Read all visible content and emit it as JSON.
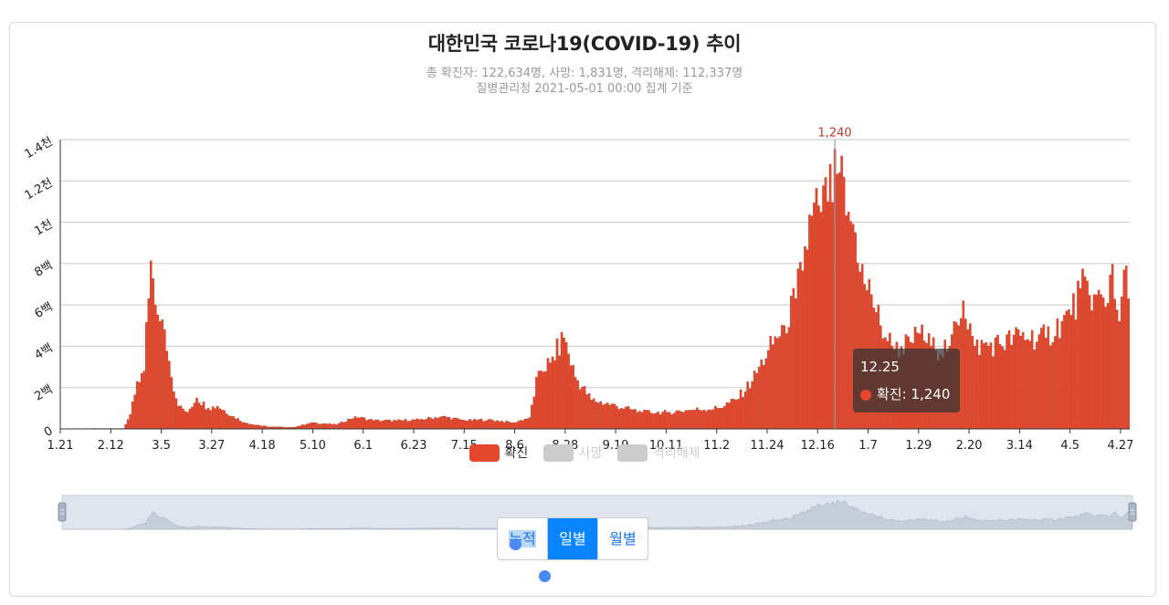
{
  "chart_data": {
    "type": "bar",
    "title": "대한민국 코로나19(COVID-19) 추이",
    "subtitle": "총 확진자: 122,634명, 사망: 1,831명, 격리해제: 112,337명",
    "subtitle2": "질병관리청 2021-05-01 00:00 집계 기준",
    "x_range": [
      "2020-01-21",
      "2021-04-30"
    ],
    "ylim": [
      0,
      1400
    ],
    "y_ticks": [
      "0",
      "2백",
      "4백",
      "6백",
      "8백",
      "1천",
      "1.2천",
      "1.4천"
    ],
    "x_ticks": [
      "1.21",
      "2.12",
      "3.5",
      "3.27",
      "4.18",
      "5.10",
      "6.1",
      "6.23",
      "7.15",
      "8.6",
      "8.28",
      "9.19",
      "10.11",
      "11.2",
      "11.24",
      "12.16",
      "1.7",
      "1.29",
      "2.20",
      "3.14",
      "4.5",
      "4.27"
    ],
    "grid": true,
    "legend_position": "bottom",
    "series": [
      {
        "name": "확진",
        "color": "#e4472b",
        "active": true,
        "anchors": [
          [
            "2020-01-21",
            1
          ],
          [
            "2020-02-10",
            2
          ],
          [
            "2020-02-17",
            2
          ],
          [
            "2020-02-20",
            70
          ],
          [
            "2020-02-23",
            230
          ],
          [
            "2020-02-26",
            280
          ],
          [
            "2020-02-29",
            813
          ],
          [
            "2020-03-02",
            600
          ],
          [
            "2020-03-04",
            520
          ],
          [
            "2020-03-06",
            480
          ],
          [
            "2020-03-09",
            250
          ],
          [
            "2020-03-12",
            110
          ],
          [
            "2020-03-16",
            80
          ],
          [
            "2020-03-20",
            150
          ],
          [
            "2020-03-25",
            100
          ],
          [
            "2020-03-29",
            110
          ],
          [
            "2020-04-05",
            60
          ],
          [
            "2020-04-10",
            30
          ],
          [
            "2020-04-20",
            10
          ],
          [
            "2020-05-01",
            8
          ],
          [
            "2020-05-10",
            30
          ],
          [
            "2020-05-20",
            20
          ],
          [
            "2020-05-28",
            60
          ],
          [
            "2020-06-05",
            40
          ],
          [
            "2020-06-15",
            40
          ],
          [
            "2020-06-25",
            45
          ],
          [
            "2020-07-05",
            60
          ],
          [
            "2020-07-15",
            40
          ],
          [
            "2020-07-25",
            45
          ],
          [
            "2020-08-05",
            30
          ],
          [
            "2020-08-12",
            55
          ],
          [
            "2020-08-16",
            280
          ],
          [
            "2020-08-21",
            320
          ],
          [
            "2020-08-27",
            441
          ],
          [
            "2020-09-01",
            250
          ],
          [
            "2020-09-08",
            140
          ],
          [
            "2020-09-19",
            110
          ],
          [
            "2020-09-30",
            80
          ],
          [
            "2020-10-11",
            80
          ],
          [
            "2020-10-20",
            90
          ],
          [
            "2020-11-02",
            100
          ],
          [
            "2020-11-10",
            140
          ],
          [
            "2020-11-17",
            230
          ],
          [
            "2020-11-24",
            380
          ],
          [
            "2020-12-01",
            500
          ],
          [
            "2020-12-06",
            630
          ],
          [
            "2020-12-13",
            1030
          ],
          [
            "2020-12-16",
            1080
          ],
          [
            "2020-12-20",
            1100
          ],
          [
            "2020-12-25",
            1240
          ],
          [
            "2020-12-29",
            1050
          ],
          [
            "2021-01-01",
            950
          ],
          [
            "2021-01-05",
            700
          ],
          [
            "2021-01-08",
            650
          ],
          [
            "2021-01-12",
            500
          ],
          [
            "2021-01-18",
            380
          ],
          [
            "2021-01-25",
            420
          ],
          [
            "2021-01-29",
            460
          ],
          [
            "2021-02-05",
            380
          ],
          [
            "2021-02-11",
            400
          ],
          [
            "2021-02-17",
            620
          ],
          [
            "2021-02-22",
            400
          ],
          [
            "2021-03-05",
            410
          ],
          [
            "2021-03-14",
            450
          ],
          [
            "2021-03-25",
            440
          ],
          [
            "2021-04-01",
            520
          ],
          [
            "2021-04-05",
            550
          ],
          [
            "2021-04-09",
            680
          ],
          [
            "2021-04-15",
            650
          ],
          [
            "2021-04-20",
            590
          ],
          [
            "2021-04-23",
            797
          ],
          [
            "2021-04-26",
            520
          ],
          [
            "2021-04-28",
            770
          ],
          [
            "2021-04-30",
            630
          ]
        ]
      },
      {
        "name": "사망",
        "color": "#cccccc",
        "active": false
      },
      {
        "name": "격리해제",
        "color": "#cccccc",
        "active": false
      }
    ],
    "peak_label": "1,240",
    "tooltip": {
      "date": "12.25",
      "series": "확진",
      "value": "1,240"
    }
  },
  "modes": {
    "cumulative": "누적",
    "daily": "일별",
    "monthly": "월별",
    "active": "daily"
  }
}
